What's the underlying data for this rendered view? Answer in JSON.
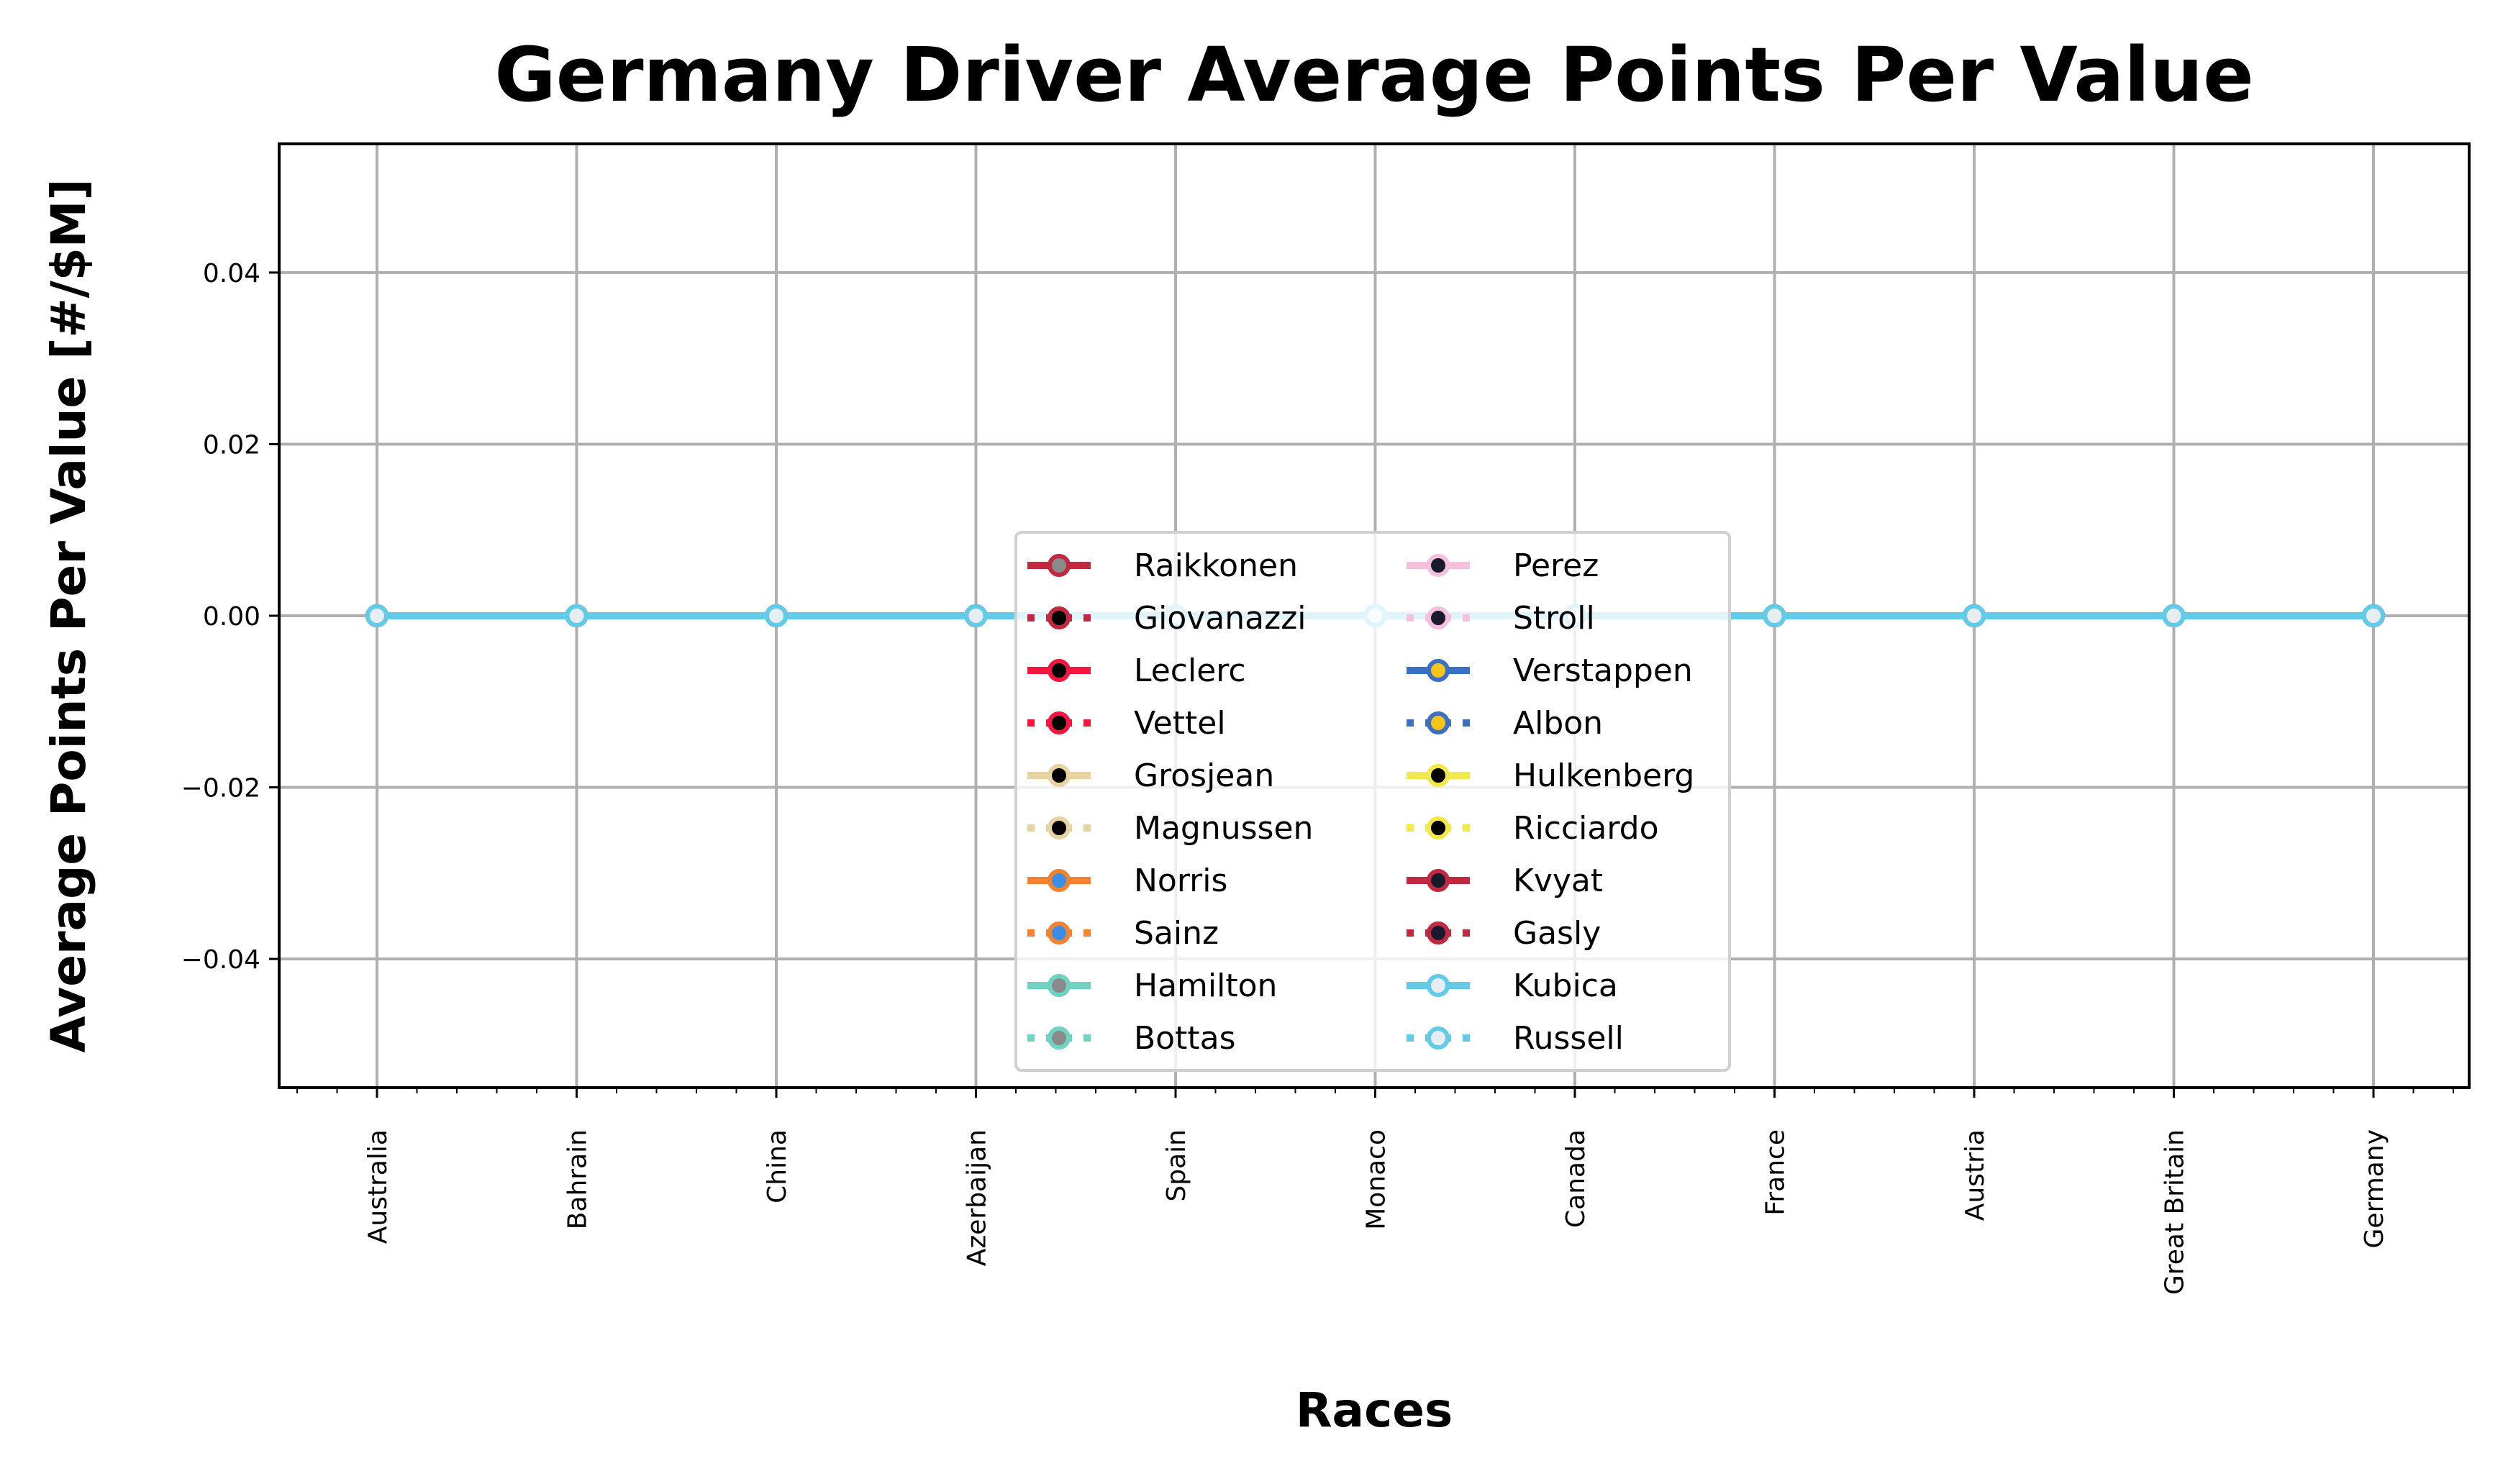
{
  "chart_data": {
    "type": "line",
    "title": "Germany Driver Average Points Per Value",
    "xlabel": "Races",
    "ylabel": "Average Points Per Value [#/$M]",
    "categories": [
      "Australia",
      "Bahrain",
      "China",
      "Azerbaijan",
      "Spain",
      "Monaco",
      "Canada",
      "France",
      "Austria",
      "Great Britain",
      "Germany"
    ],
    "ylim": [
      -0.055,
      0.055
    ],
    "yticks": [
      0.04,
      0.02,
      0.0,
      -0.02,
      -0.04
    ],
    "ytick_labels": [
      "0.04",
      "0.02",
      "0.00",
      "−0.02",
      "−0.04"
    ],
    "grid": true,
    "legend_position": "center",
    "series": [
      {
        "name": "Raikkonen",
        "color": "#c0293f",
        "marker_face": "#8a8a8a",
        "dash": "solid",
        "values": [
          0,
          0,
          0,
          0,
          0,
          0,
          0,
          0,
          0,
          0,
          0
        ]
      },
      {
        "name": "Giovanazzi",
        "color": "#c0293f",
        "marker_face": "#000000",
        "dash": "dotted",
        "values": [
          0,
          0,
          0,
          0,
          0,
          0,
          0,
          0,
          0,
          0,
          0
        ]
      },
      {
        "name": "Leclerc",
        "color": "#f5163f",
        "marker_face": "#000000",
        "dash": "solid",
        "values": [
          0,
          0,
          0,
          0,
          0,
          0,
          0,
          0,
          0,
          0,
          0
        ]
      },
      {
        "name": "Vettel",
        "color": "#f5163f",
        "marker_face": "#000000",
        "dash": "dotted",
        "values": [
          0,
          0,
          0,
          0,
          0,
          0,
          0,
          0,
          0,
          0,
          0
        ]
      },
      {
        "name": "Grosjean",
        "color": "#e8d3a3",
        "marker_face": "#000000",
        "dash": "solid",
        "values": [
          0,
          0,
          0,
          0,
          0,
          0,
          0,
          0,
          0,
          0,
          0
        ]
      },
      {
        "name": "Magnussen",
        "color": "#e8d3a3",
        "marker_face": "#000000",
        "dash": "dotted",
        "values": [
          0,
          0,
          0,
          0,
          0,
          0,
          0,
          0,
          0,
          0,
          0
        ]
      },
      {
        "name": "Norris",
        "color": "#f58231",
        "marker_face": "#3a8ee6",
        "dash": "solid",
        "values": [
          0,
          0,
          0,
          0,
          0,
          0,
          0,
          0,
          0,
          0,
          0
        ]
      },
      {
        "name": "Sainz",
        "color": "#f58231",
        "marker_face": "#3a8ee6",
        "dash": "dotted",
        "values": [
          0,
          0,
          0,
          0,
          0,
          0,
          0,
          0,
          0,
          0,
          0
        ]
      },
      {
        "name": "Hamilton",
        "color": "#6fd3c2",
        "marker_face": "#8a8a8a",
        "dash": "solid",
        "values": [
          0,
          0,
          0,
          0,
          0,
          0,
          0,
          0,
          0,
          0,
          0
        ]
      },
      {
        "name": "Bottas",
        "color": "#6fd3c2",
        "marker_face": "#8a8a8a",
        "dash": "dotted",
        "values": [
          0,
          0,
          0,
          0,
          0,
          0,
          0,
          0,
          0,
          0,
          0
        ]
      },
      {
        "name": "Perez",
        "color": "#f3c1dc",
        "marker_face": "#1a1a2e",
        "dash": "solid",
        "values": [
          0,
          0,
          0,
          0,
          0,
          0,
          0,
          0,
          0,
          0,
          0
        ]
      },
      {
        "name": "Stroll",
        "color": "#f3c1dc",
        "marker_face": "#1a1a2e",
        "dash": "dotted",
        "values": [
          0,
          0,
          0,
          0,
          0,
          0,
          0,
          0,
          0,
          0,
          0
        ]
      },
      {
        "name": "Verstappen",
        "color": "#3a6fc4",
        "marker_face": "#f5c518",
        "dash": "solid",
        "values": [
          0,
          0,
          0,
          0,
          0,
          0,
          0,
          0,
          0,
          0,
          0
        ]
      },
      {
        "name": "Albon",
        "color": "#3a6fc4",
        "marker_face": "#f5c518",
        "dash": "dotted",
        "values": [
          0,
          0,
          0,
          0,
          0,
          0,
          0,
          0,
          0,
          0,
          0
        ]
      },
      {
        "name": "Hulkenberg",
        "color": "#f2e84a",
        "marker_face": "#000000",
        "dash": "solid",
        "values": [
          0,
          0,
          0,
          0,
          0,
          0,
          0,
          0,
          0,
          0,
          0
        ]
      },
      {
        "name": "Ricciardo",
        "color": "#f2e84a",
        "marker_face": "#000000",
        "dash": "dotted",
        "values": [
          0,
          0,
          0,
          0,
          0,
          0,
          0,
          0,
          0,
          0,
          0
        ]
      },
      {
        "name": "Kvyat",
        "color": "#c0293f",
        "marker_face": "#1a1a2e",
        "dash": "solid",
        "values": [
          0,
          0,
          0,
          0,
          0,
          0,
          0,
          0,
          0,
          0,
          0
        ]
      },
      {
        "name": "Gasly",
        "color": "#c0293f",
        "marker_face": "#1a1a2e",
        "dash": "dotted",
        "values": [
          0,
          0,
          0,
          0,
          0,
          0,
          0,
          0,
          0,
          0,
          0
        ]
      },
      {
        "name": "Kubica",
        "color": "#62cbe8",
        "marker_face": "#e6eef2",
        "dash": "solid",
        "values": [
          0,
          0,
          0,
          0,
          0,
          0,
          0,
          0,
          0,
          0,
          0
        ]
      },
      {
        "name": "Russell",
        "color": "#62cbe8",
        "marker_face": "#e6eef2",
        "dash": "dotted",
        "values": [
          0,
          0,
          0,
          0,
          0,
          0,
          0,
          0,
          0,
          0,
          0
        ]
      }
    ]
  }
}
